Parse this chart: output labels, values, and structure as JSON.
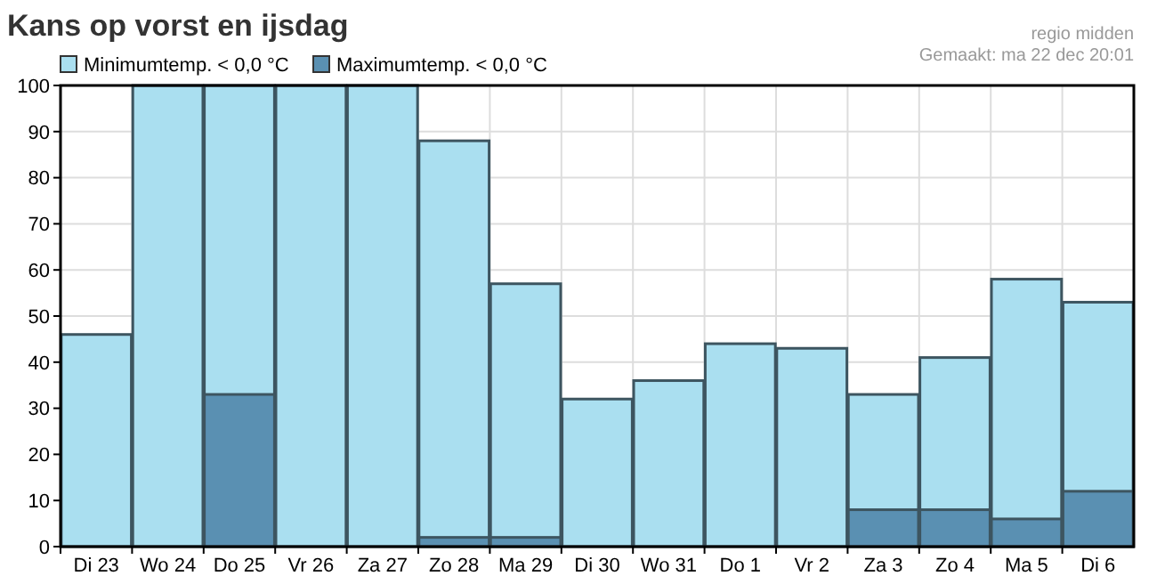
{
  "chart_data": {
    "type": "bar",
    "title": "Kans op vorst en ijsdag",
    "annotations": [
      "regio midden",
      "Gemaakt: ma 22 dec 20:01"
    ],
    "categories": [
      "Di 23",
      "Wo 24",
      "Do 25",
      "Vr 26",
      "Za 27",
      "Zo 28",
      "Ma 29",
      "Di 30",
      "Wo 31",
      "Do 1",
      "Vr 2",
      "Za 3",
      "Zo 4",
      "Ma 5",
      "Di 6"
    ],
    "series": [
      {
        "name": "Minimumtemp. < 0,0 °C",
        "color": "#aadff0",
        "values": [
          46,
          100,
          100,
          100,
          100,
          88,
          57,
          32,
          36,
          44,
          43,
          33,
          41,
          58,
          53
        ]
      },
      {
        "name": "Maximumtemp. < 0,0 °C",
        "color": "#5a90b2",
        "values": [
          0,
          0,
          33,
          0,
          0,
          2,
          2,
          0,
          0,
          0,
          0,
          8,
          8,
          6,
          12
        ]
      }
    ],
    "ylim": [
      0,
      100
    ],
    "yticks": [
      0,
      10,
      20,
      30,
      40,
      50,
      60,
      70,
      80,
      90,
      100
    ],
    "grid": true,
    "legend": "top left"
  }
}
